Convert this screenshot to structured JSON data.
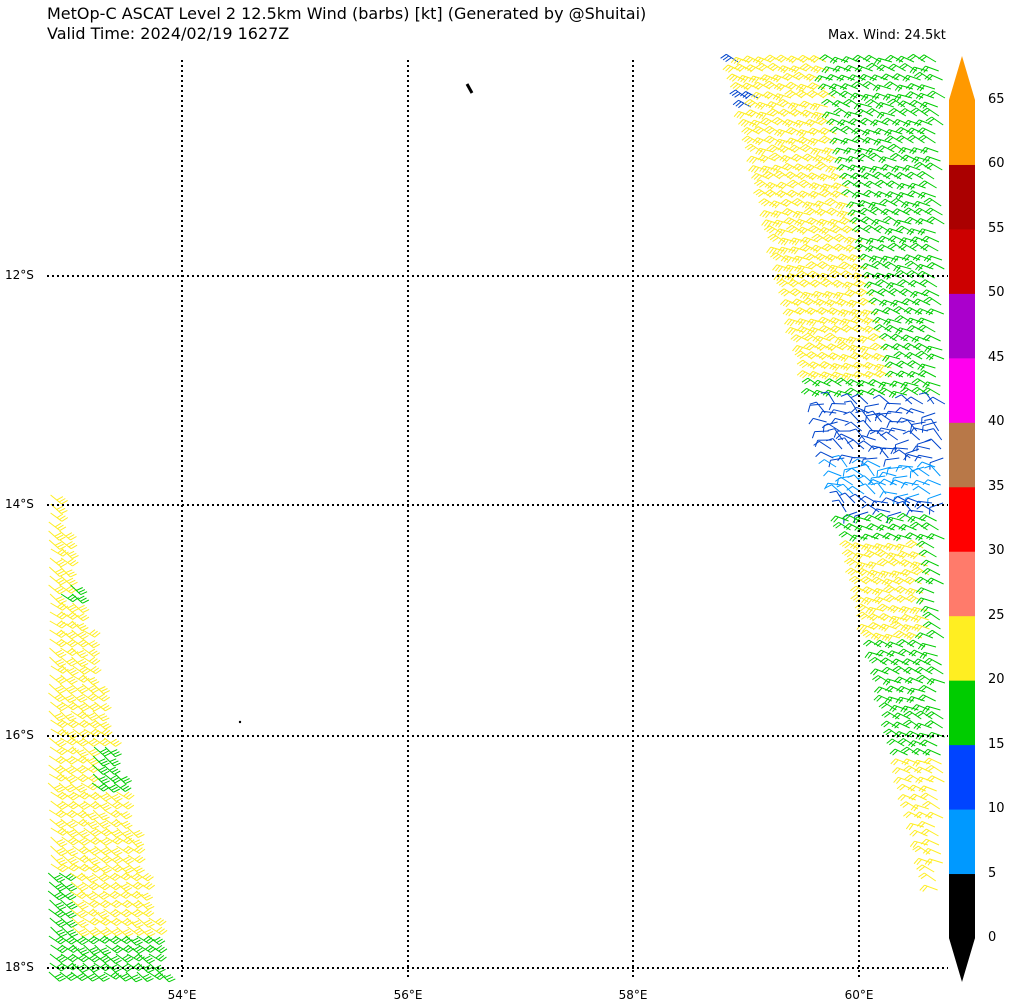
{
  "header": {
    "title_line1": "MetOp-C ASCAT Level 2 12.5km Wind (barbs) [kt] (Generated by @Shuitai)",
    "title_line2": "Valid Time: 2024/02/19 1627Z",
    "max_wind": "Max. Wind: 24.5kt"
  },
  "map": {
    "lat_labels": [
      "12°S",
      "14°S",
      "16°S",
      "18°S"
    ],
    "lon_labels": [
      "54°E",
      "56°E",
      "58°E",
      "60°E"
    ]
  },
  "colorbar": {
    "ticks": [
      "0",
      "5",
      "10",
      "15",
      "20",
      "25",
      "30",
      "35",
      "40",
      "45",
      "50",
      "55",
      "60",
      "65"
    ],
    "colors": [
      "#000000",
      "#0099ff",
      "#0044ff",
      "#00cc00",
      "#ffee22",
      "#ff7b6b",
      "#ff0000",
      "#b87848",
      "#ff00ee",
      "#aa00cc",
      "#cc0000",
      "#aa0000",
      "#ff9900"
    ]
  },
  "wind_colors": {
    "calm": "#0099ff",
    "light": "#0044cc",
    "moderate": "#00cc00",
    "fresh": "#ffee22"
  }
}
